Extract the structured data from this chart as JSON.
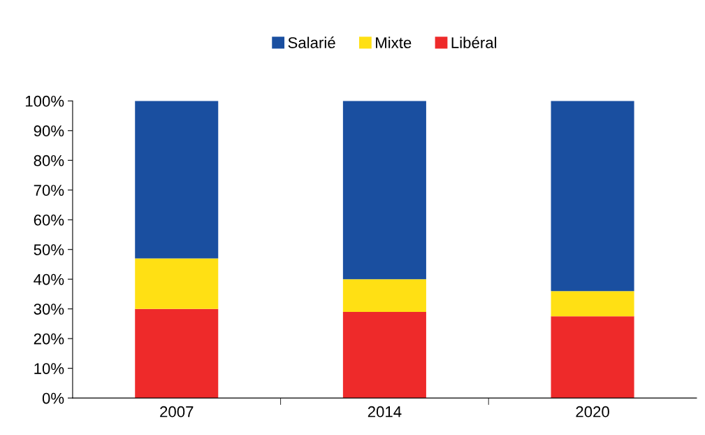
{
  "chart_data": {
    "type": "bar",
    "stacked": true,
    "categories": [
      "2007",
      "2014",
      "2020"
    ],
    "series": [
      {
        "name": "Libéral",
        "color": "#ee2a2a",
        "values": [
          30,
          29,
          27.5
        ]
      },
      {
        "name": "Mixte",
        "color": "#ffe014",
        "values": [
          17,
          11,
          8.5
        ]
      },
      {
        "name": "Salarié",
        "color": "#1a4fa0",
        "values": [
          53,
          60,
          64
        ]
      }
    ],
    "ylim": [
      0,
      100
    ],
    "yticks": [
      {
        "value": 0,
        "label": "0%"
      },
      {
        "value": 10,
        "label": "10%"
      },
      {
        "value": 20,
        "label": "20%"
      },
      {
        "value": 30,
        "label": "30%"
      },
      {
        "value": 40,
        "label": "40%"
      },
      {
        "value": 50,
        "label": "50%"
      },
      {
        "value": 60,
        "label": "60%"
      },
      {
        "value": 70,
        "label": "70%"
      },
      {
        "value": 80,
        "label": "80%"
      },
      {
        "value": 90,
        "label": "90%"
      },
      {
        "value": 100,
        "label": "100%"
      }
    ],
    "grid": false,
    "legend": "top"
  }
}
